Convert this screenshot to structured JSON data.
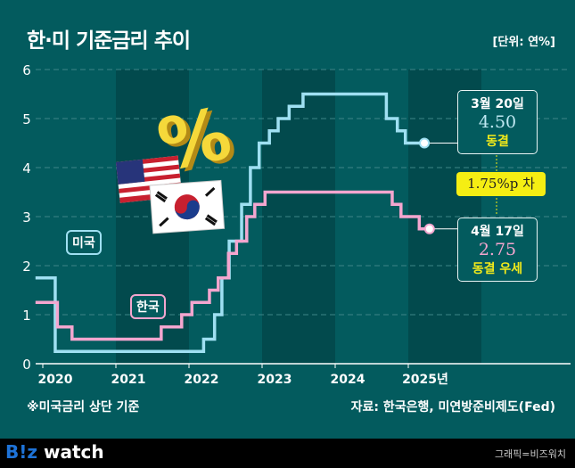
{
  "header": {
    "title": "한·미 기준금리 추이",
    "unit": "[단위: 연%]"
  },
  "chart_data": {
    "type": "line",
    "title": "한·미 기준금리 추이",
    "ylabel": "연%",
    "ylim": [
      0,
      6
    ],
    "yticks": [
      "0",
      "1",
      "2",
      "3",
      "4",
      "5",
      "6"
    ],
    "xticks": [
      "2020",
      "2021",
      "2022",
      "2023",
      "2024",
      "2025년"
    ],
    "series": [
      {
        "name": "미국",
        "color": "#9fe0f2",
        "points": [
          [
            2019.9,
            1.75
          ],
          [
            2020.17,
            0.25
          ],
          [
            2022.2,
            0.5
          ],
          [
            2022.35,
            1.0
          ],
          [
            2022.45,
            1.75
          ],
          [
            2022.55,
            2.5
          ],
          [
            2022.72,
            3.25
          ],
          [
            2022.84,
            4.0
          ],
          [
            2022.96,
            4.5
          ],
          [
            2023.1,
            4.75
          ],
          [
            2023.22,
            5.0
          ],
          [
            2023.37,
            5.25
          ],
          [
            2023.56,
            5.5
          ],
          [
            2024.7,
            5.0
          ],
          [
            2024.85,
            4.75
          ],
          [
            2024.96,
            4.5
          ],
          [
            2025.22,
            4.5
          ]
        ]
      },
      {
        "name": "한국",
        "color": "#f4a6cf",
        "points": [
          [
            2019.9,
            1.25
          ],
          [
            2020.2,
            0.75
          ],
          [
            2020.4,
            0.5
          ],
          [
            2021.62,
            0.75
          ],
          [
            2021.9,
            1.0
          ],
          [
            2022.04,
            1.25
          ],
          [
            2022.28,
            1.5
          ],
          [
            2022.4,
            1.75
          ],
          [
            2022.54,
            2.25
          ],
          [
            2022.65,
            2.5
          ],
          [
            2022.79,
            3.0
          ],
          [
            2022.9,
            3.25
          ],
          [
            2023.04,
            3.5
          ],
          [
            2024.78,
            3.25
          ],
          [
            2024.9,
            3.0
          ],
          [
            2025.15,
            2.75
          ],
          [
            2025.29,
            2.75
          ]
        ]
      }
    ]
  },
  "labels": {
    "us": "미국",
    "kr": "한국"
  },
  "callouts": {
    "us": {
      "date": "3월 20일",
      "value": "4.50",
      "status": "동결"
    },
    "kr": {
      "date": "4월 17일",
      "value": "2.75",
      "status": "동결 우세"
    },
    "diff": "1.75%p 차"
  },
  "notes": {
    "left": "※미국금리 상단 기준",
    "source": "자료: 한국은행, 미연방준비제도(Fed)"
  },
  "footer": {
    "logo_b": "B!z",
    "logo_w": " watch",
    "credit": "그래픽=비즈워치"
  }
}
